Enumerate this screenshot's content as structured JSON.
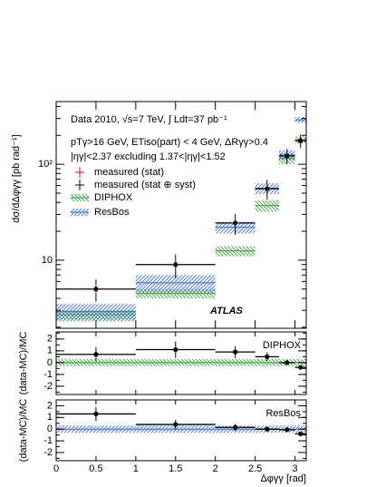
{
  "chart_data": [
    {
      "type": "errorbar",
      "log_y": true,
      "ylabel": "dσ/dΔφγγ [pb rad⁻¹]",
      "annotations": [
        "Data 2010, √s=7 TeV, ∫ Ldt=37 pb⁻¹",
        "pTγ>16 GeV, ETiso(part) < 4 GeV, ΔRγγ>0.4",
        "|ηγ|<2.37 excluding 1.37<|ηγ|<1.52"
      ],
      "brand": "ATLAS",
      "legend": "upper left",
      "xlim": [
        0,
        3.1416
      ],
      "xticks": [
        0,
        0.5,
        1,
        1.5,
        2,
        2.5,
        3
      ],
      "ylim": [
        1.95,
        450
      ],
      "yticks": [
        10,
        {
          "value": 100,
          "label": "10²"
        }
      ],
      "bins": [
        0,
        1,
        2,
        2.5,
        2.8,
        3.0,
        3.1416
      ],
      "x": [
        0.5,
        1.5,
        2.25,
        2.65,
        2.9,
        3.07
      ],
      "series": [
        {
          "name": "measured (stat)",
          "color": "#ff0000",
          "values": [
            5.0,
            9.0,
            24.4,
            55.6,
            122,
            176
          ],
          "errors": [
            0.6,
            1.0,
            2,
            4,
            8,
            12
          ]
        },
        {
          "name": "measured (stat ⊕ syst)",
          "color": "#000000",
          "values": [
            5.0,
            9.0,
            24.4,
            55.6,
            122,
            176
          ],
          "errors": [
            1.3,
            2.5,
            6,
            13,
            22,
            28
          ]
        },
        {
          "name": "DIPHOX",
          "color": "#339933",
          "style": "band",
          "values": [
            2.7,
            4.5,
            12.5,
            37,
            115,
            180
          ],
          "errors": [
            0.3,
            0.5,
            1.5,
            5,
            15,
            15
          ]
        },
        {
          "name": "ResBos",
          "color": "#3366cc",
          "style": "band",
          "values": [
            2.9,
            5.8,
            22,
            56,
            125,
            290
          ],
          "errors": [
            0.6,
            1.2,
            3,
            7,
            15,
            20
          ]
        }
      ]
    },
    {
      "type": "errorbar",
      "label": "DIPHOX",
      "ylabel": "(data-MC)/MC",
      "xlim": [
        0,
        3.1416
      ],
      "xticks": [
        0,
        0.5,
        1,
        1.5,
        2,
        2.5,
        3
      ],
      "ylim": [
        -2.7,
        2.6
      ],
      "yticks": [
        -2,
        -1,
        0,
        1,
        2
      ],
      "bins": [
        0,
        1,
        2,
        2.5,
        2.8,
        3.0,
        3.1416
      ],
      "x": [
        0.5,
        1.5,
        2.25,
        2.65,
        2.9,
        3.07
      ],
      "series": [
        {
          "color": "#339933",
          "style": "band",
          "values": [
            0,
            0,
            0,
            0,
            0,
            0
          ],
          "errors": [
            0.3,
            0.3,
            0.3,
            0.3,
            0.3,
            0.3
          ]
        },
        {
          "color": "#000000",
          "values": [
            0.7,
            1.1,
            0.9,
            0.5,
            0.0,
            -0.4
          ],
          "errors": [
            0.6,
            0.7,
            0.5,
            0.35,
            0.2,
            0.15
          ]
        }
      ]
    },
    {
      "type": "errorbar",
      "label": "ResBos",
      "ylabel": "(data-MC)/MC",
      "xlabel": "Δφγγ [rad]",
      "xlim": [
        0,
        3.1416
      ],
      "xticks": [
        0,
        0.5,
        1,
        1.5,
        2,
        2.5,
        3
      ],
      "ylim": [
        -2.7,
        2.5
      ],
      "yticks": [
        -2,
        -1,
        0,
        1,
        2
      ],
      "bins": [
        0,
        1,
        2,
        2.5,
        2.8,
        3.0,
        3.1416
      ],
      "x": [
        0.5,
        1.5,
        2.25,
        2.65,
        2.9,
        3.07
      ],
      "series": [
        {
          "color": "#3366cc",
          "style": "band",
          "values": [
            0,
            0,
            0,
            0,
            0,
            0
          ],
          "errors": [
            0.3,
            0.3,
            0.3,
            0.3,
            0.3,
            0.3
          ]
        },
        {
          "color": "#000000",
          "values": [
            1.3,
            0.4,
            0.15,
            0.0,
            -0.05,
            -0.4
          ],
          "errors": [
            0.6,
            0.4,
            0.3,
            0.2,
            0.15,
            0.1
          ]
        }
      ]
    }
  ]
}
